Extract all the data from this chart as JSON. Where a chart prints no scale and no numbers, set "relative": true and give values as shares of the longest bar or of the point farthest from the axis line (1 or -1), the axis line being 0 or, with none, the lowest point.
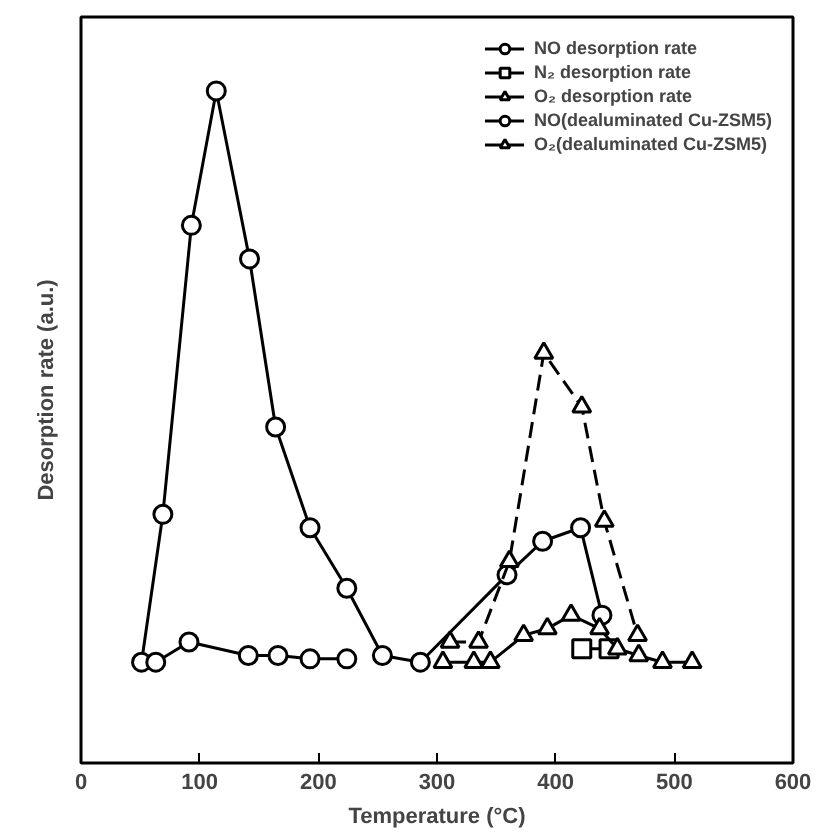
{
  "chart_data": {
    "type": "line",
    "relative": true,
    "xlabel": "Temperature (°C)",
    "ylabel": "Desorption rate (a.u.)",
    "xlim": [
      0,
      600
    ],
    "xticks": [
      0,
      100,
      200,
      300,
      400,
      500,
      600
    ],
    "tick_labels": "x",
    "grid": false,
    "legend": "top right",
    "series": [
      {
        "name": "NO desorption rate",
        "color": "#000000",
        "marker": "circle",
        "line_style": "solid",
        "x": [
          51,
          69,
          93,
          114,
          142,
          164,
          193,
          224,
          254,
          286,
          359,
          389,
          421,
          439
        ],
        "values": [
          0.15,
          0.37,
          0.8,
          1.0,
          0.75,
          0.5,
          0.35,
          0.26,
          0.16,
          0.15,
          0.28,
          0.33,
          0.35,
          0.22
        ]
      },
      {
        "name": "N₂ desorption rate",
        "color": "#000000",
        "marker": "square",
        "line_style": "solid",
        "x": [
          422,
          445
        ],
        "values": [
          0.17,
          0.17
        ]
      },
      {
        "name": "O₂ desorption rate",
        "color": "#000000",
        "marker": "triangle",
        "line_style": "dashed",
        "x": [
          311,
          335,
          361,
          390,
          422,
          441,
          469
        ],
        "values": [
          0.18,
          0.18,
          0.3,
          0.61,
          0.53,
          0.36,
          0.19
        ]
      },
      {
        "name": "NO(dealuminated Cu-ZSM5)",
        "color": "#000000",
        "marker": "circle",
        "line_style": "solid",
        "x": [
          63,
          91,
          141,
          166,
          193,
          224
        ],
        "values": [
          0.15,
          0.18,
          0.16,
          0.16,
          0.155,
          0.155
        ]
      },
      {
        "name": "O₂(dealuminated Cu-ZSM5)",
        "color": "#000000",
        "marker": "triangle",
        "line_style": "solid",
        "x": [
          305,
          331,
          345,
          373,
          393,
          413,
          437,
          452,
          470,
          490,
          515
        ],
        "values": [
          0.15,
          0.15,
          0.15,
          0.19,
          0.2,
          0.22,
          0.2,
          0.17,
          0.16,
          0.15,
          0.15
        ]
      }
    ]
  }
}
